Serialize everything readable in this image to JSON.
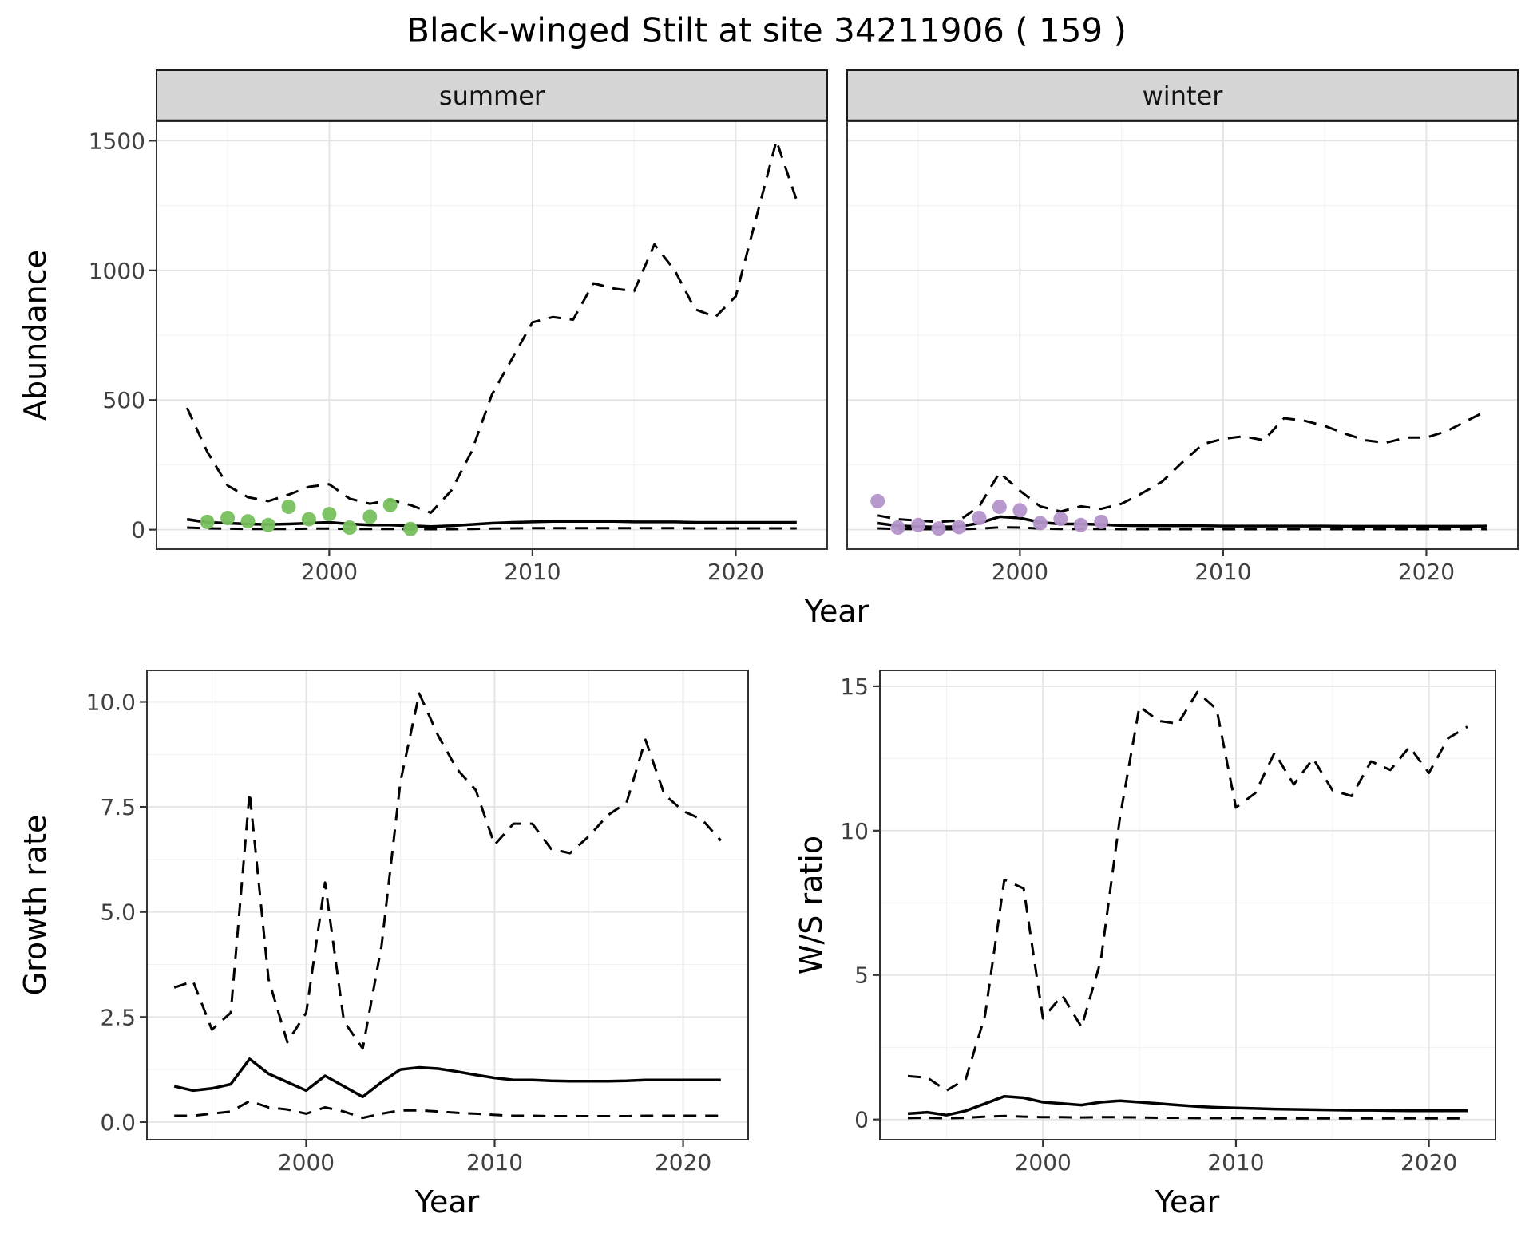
{
  "title": "Black-winged Stilt at site 34211906 ( 159 )",
  "theme": {
    "strip_fill": "#d6d6d6",
    "strip_border": "#1a1a1a",
    "panel_border": "#333333",
    "grid_major": "#e4e4e4",
    "grid_minor": "#f1f1f1",
    "line_color": "#000000",
    "tick_color": "#333333",
    "tick_label_color": "#404040",
    "summer_point_color": "#78c05f",
    "winter_point_color": "#b494cb"
  },
  "chart_data": [
    {
      "id": "abundance",
      "type": "line",
      "ylabel": "Abundance",
      "xlabel": "Year",
      "legend_position": "none",
      "grid": true,
      "x_domain": [
        1991.5,
        2024.5
      ],
      "y_domain": [
        -75,
        1575
      ],
      "x_ticks": {
        "values": [
          2000,
          2010,
          2020
        ],
        "labels": [
          "2000",
          "2010",
          "2020"
        ]
      },
      "x_minor": [
        1995,
        2005,
        2015
      ],
      "y_ticks": {
        "values": [
          0,
          500,
          1000,
          1500
        ],
        "labels": [
          "0",
          "500",
          "1000",
          "1500"
        ]
      },
      "y_minor": [
        250,
        750,
        1250
      ],
      "series_style": {
        "upper": "dashed",
        "median": "solid",
        "lower": "dashed"
      },
      "facets": [
        {
          "label": "summer",
          "point_color": "#78c05f",
          "years": [
            1993,
            1994,
            1995,
            1996,
            1997,
            1998,
            1999,
            2000,
            2001,
            2002,
            2003,
            2004,
            2005,
            2006,
            2007,
            2008,
            2009,
            2010,
            2011,
            2012,
            2013,
            2014,
            2015,
            2016,
            2017,
            2018,
            2019,
            2020,
            2021,
            2022,
            2023
          ],
          "upper": [
            470,
            300,
            170,
            125,
            110,
            135,
            165,
            175,
            120,
            100,
            115,
            95,
            65,
            150,
            300,
            520,
            660,
            800,
            820,
            810,
            950,
            930,
            920,
            1100,
            1000,
            850,
            820,
            900,
            1200,
            1500,
            1270
          ],
          "median": [
            40,
            28,
            25,
            22,
            20,
            22,
            25,
            28,
            22,
            18,
            18,
            15,
            12,
            15,
            20,
            25,
            28,
            30,
            32,
            32,
            32,
            32,
            30,
            30,
            30,
            28,
            28,
            28,
            28,
            28,
            28
          ],
          "lower": [
            8,
            5,
            4,
            3,
            3,
            3,
            4,
            4,
            3,
            3,
            3,
            2,
            2,
            2,
            3,
            4,
            5,
            6,
            6,
            6,
            6,
            6,
            6,
            6,
            6,
            5,
            5,
            5,
            5,
            5,
            5
          ],
          "obs_years": [
            1994,
            1995,
            1996,
            1997,
            1998,
            1999,
            2000,
            2001,
            2002,
            2003,
            2004
          ],
          "obs_values": [
            30,
            45,
            32,
            18,
            88,
            40,
            60,
            8,
            50,
            95,
            3
          ]
        },
        {
          "label": "winter",
          "point_color": "#b494cb",
          "years": [
            1993,
            1994,
            1995,
            1996,
            1997,
            1998,
            1999,
            2000,
            2001,
            2002,
            2003,
            2004,
            2005,
            2006,
            2007,
            2008,
            2009,
            2010,
            2011,
            2012,
            2013,
            2014,
            2015,
            2016,
            2017,
            2018,
            2019,
            2020,
            2021,
            2022,
            2023
          ],
          "upper": [
            55,
            40,
            35,
            30,
            35,
            90,
            220,
            150,
            90,
            70,
            90,
            80,
            100,
            140,
            185,
            260,
            330,
            350,
            360,
            345,
            430,
            420,
            400,
            370,
            345,
            335,
            355,
            355,
            380,
            420,
            460
          ],
          "median": [
            25,
            15,
            12,
            10,
            12,
            25,
            50,
            45,
            28,
            22,
            22,
            20,
            16,
            15,
            15,
            15,
            15,
            14,
            14,
            14,
            14,
            14,
            14,
            13,
            13,
            13,
            13,
            13,
            13,
            13,
            14
          ],
          "lower": [
            5,
            3,
            2,
            2,
            2,
            4,
            9,
            8,
            4,
            3,
            3,
            3,
            2,
            2,
            2,
            2,
            2,
            2,
            2,
            2,
            2,
            2,
            2,
            2,
            2,
            2,
            2,
            2,
            2,
            2,
            2
          ],
          "obs_years": [
            1993,
            1994,
            1995,
            1996,
            1997,
            1998,
            1999,
            2000,
            2001,
            2002,
            2003,
            2004
          ],
          "obs_values": [
            110,
            8,
            18,
            4,
            10,
            45,
            88,
            75,
            25,
            42,
            18,
            30
          ]
        }
      ]
    },
    {
      "id": "growth_rate",
      "type": "line",
      "ylabel": "Growth rate",
      "xlabel": "Year",
      "legend_position": "none",
      "grid": true,
      "x_domain": [
        1991.55,
        2023.45
      ],
      "y_domain": [
        -0.42,
        10.75
      ],
      "x_ticks": {
        "values": [
          2000,
          2010,
          2020
        ],
        "labels": [
          "2000",
          "2010",
          "2020"
        ]
      },
      "x_minor": [
        1995,
        2005,
        2015
      ],
      "y_ticks": {
        "values": [
          0,
          2.5,
          5,
          7.5,
          10
        ],
        "labels": [
          "0.0",
          "2.5",
          "5.0",
          "7.5",
          "10.0"
        ]
      },
      "y_minor": [
        1.25,
        3.75,
        6.25,
        8.75
      ],
      "series_style": {
        "upper": "dashed",
        "median": "solid",
        "lower": "dashed"
      },
      "years": [
        1993,
        1994,
        1995,
        1996,
        1997,
        1998,
        1999,
        2000,
        2001,
        2002,
        2003,
        2004,
        2005,
        2006,
        2007,
        2008,
        2009,
        2010,
        2011,
        2012,
        2013,
        2014,
        2015,
        2016,
        2017,
        2018,
        2019,
        2020,
        2021,
        2022
      ],
      "upper": [
        3.2,
        3.35,
        2.2,
        2.6,
        7.85,
        3.4,
        1.9,
        2.6,
        5.7,
        2.4,
        1.75,
        4.2,
        8.1,
        10.2,
        9.2,
        8.4,
        7.9,
        6.6,
        7.1,
        7.1,
        6.5,
        6.4,
        6.8,
        7.3,
        7.6,
        9.1,
        7.8,
        7.4,
        7.2,
        6.7
      ],
      "median": [
        0.85,
        0.75,
        0.8,
        0.9,
        1.5,
        1.15,
        0.95,
        0.75,
        1.1,
        0.85,
        0.6,
        0.95,
        1.25,
        1.3,
        1.27,
        1.2,
        1.12,
        1.05,
        1.0,
        1.0,
        0.98,
        0.97,
        0.97,
        0.97,
        0.98,
        1.0,
        1.0,
        1.0,
        1.0,
        1.0
      ],
      "lower": [
        0.15,
        0.15,
        0.2,
        0.25,
        0.5,
        0.35,
        0.3,
        0.2,
        0.35,
        0.25,
        0.1,
        0.2,
        0.28,
        0.28,
        0.25,
        0.22,
        0.2,
        0.17,
        0.15,
        0.15,
        0.14,
        0.14,
        0.14,
        0.14,
        0.14,
        0.15,
        0.15,
        0.15,
        0.15,
        0.15
      ]
    },
    {
      "id": "ws_ratio",
      "type": "line",
      "ylabel": "W/S ratio",
      "xlabel": "Year",
      "legend_position": "none",
      "grid": true,
      "x_domain": [
        1991.55,
        2023.45
      ],
      "y_domain": [
        -0.7,
        15.55
      ],
      "x_ticks": {
        "values": [
          2000,
          2010,
          2020
        ],
        "labels": [
          "2000",
          "2010",
          "2020"
        ]
      },
      "x_minor": [
        1995,
        2005,
        2015
      ],
      "y_ticks": {
        "values": [
          0,
          5,
          10,
          15
        ],
        "labels": [
          "0",
          "5",
          "10",
          "15"
        ]
      },
      "y_minor": [
        2.5,
        7.5,
        12.5
      ],
      "series_style": {
        "upper": "dashed",
        "median": "solid",
        "lower": "dashed"
      },
      "years": [
        1993,
        1994,
        1995,
        1996,
        1997,
        1998,
        1999,
        2000,
        2001,
        2002,
        2003,
        2004,
        2005,
        2006,
        2007,
        2008,
        2009,
        2010,
        2011,
        2012,
        2013,
        2014,
        2015,
        2016,
        2017,
        2018,
        2019,
        2020,
        2021,
        2022
      ],
      "upper": [
        1.5,
        1.45,
        1.0,
        1.4,
        3.6,
        8.3,
        8.0,
        3.5,
        4.3,
        3.2,
        5.5,
        10.5,
        14.3,
        13.8,
        13.7,
        14.8,
        14.2,
        10.8,
        11.3,
        12.7,
        11.6,
        12.5,
        11.4,
        11.2,
        12.4,
        12.1,
        12.9,
        12.0,
        13.2,
        13.6
      ],
      "median": [
        0.2,
        0.25,
        0.15,
        0.3,
        0.55,
        0.8,
        0.75,
        0.6,
        0.55,
        0.5,
        0.6,
        0.65,
        0.6,
        0.55,
        0.5,
        0.45,
        0.42,
        0.4,
        0.38,
        0.36,
        0.35,
        0.34,
        0.33,
        0.32,
        0.32,
        0.31,
        0.3,
        0.3,
        0.3,
        0.3
      ],
      "lower": [
        0.05,
        0.06,
        0.04,
        0.06,
        0.1,
        0.12,
        0.1,
        0.08,
        0.08,
        0.07,
        0.08,
        0.08,
        0.07,
        0.06,
        0.06,
        0.05,
        0.05,
        0.05,
        0.05,
        0.04,
        0.04,
        0.04,
        0.04,
        0.04,
        0.04,
        0.04,
        0.04,
        0.04,
        0.04,
        0.04
      ]
    }
  ]
}
